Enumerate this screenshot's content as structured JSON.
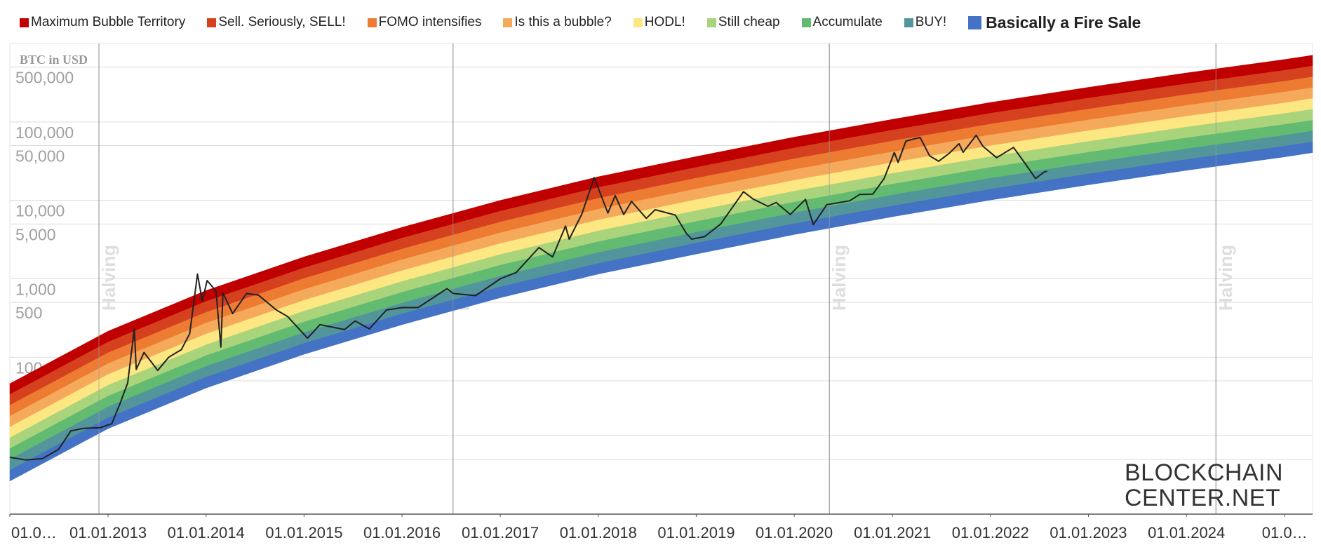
{
  "chart_data": {
    "type": "line",
    "y_label": "BTC in USD",
    "log_scale": true,
    "grid": true,
    "xlim": [
      "2012-01-01",
      "2025-04-15"
    ],
    "ylim": [
      1,
      1000000
    ],
    "yticks": [
      5,
      10,
      50,
      100,
      500,
      {
        "value": 1000,
        "label": "1,000"
      },
      {
        "value": 5000,
        "label": "5,000"
      },
      {
        "value": 10000,
        "label": "10,000"
      },
      {
        "value": 50000,
        "label": "50,000"
      },
      {
        "value": 100000,
        "label": "100,000"
      },
      {
        "value": 500000,
        "label": "500,000"
      }
    ],
    "xticks": [
      {
        "value": "2012-01-01",
        "label": "01.0…"
      },
      {
        "value": "2013-01-01",
        "label": "01.01.2013"
      },
      {
        "value": "2014-01-01",
        "label": "01.01.2014"
      },
      {
        "value": "2015-01-01",
        "label": "01.01.2015"
      },
      {
        "value": "2016-01-01",
        "label": "01.01.2016"
      },
      {
        "value": "2017-01-01",
        "label": "01.01.2017"
      },
      {
        "value": "2018-01-01",
        "label": "01.01.2018"
      },
      {
        "value": "2019-01-01",
        "label": "01.01.2019"
      },
      {
        "value": "2020-01-01",
        "label": "01.01.2020"
      },
      {
        "value": "2021-01-01",
        "label": "01.01.2021"
      },
      {
        "value": "2022-01-01",
        "label": "01.01.2022"
      },
      {
        "value": "2023-01-01",
        "label": "01.01.2023"
      },
      {
        "value": "2024-01-01",
        "label": "01.01.2024"
      },
      {
        "value": "2025-01-01",
        "label": "01.0…"
      }
    ],
    "x": [
      "2012-01-01",
      "2013-01-01",
      "2014-01-01",
      "2015-01-01",
      "2016-01-01",
      "2017-01-01",
      "2018-01-01",
      "2019-01-01",
      "2020-01-01",
      "2021-01-01",
      "2022-01-01",
      "2023-01-01",
      "2024-01-01",
      "2025-01-01",
      "2025-04-15"
    ],
    "series": [
      {
        "name": "Maximum Bubble Territory",
        "color": "#c00000",
        "values": [
          46,
          215,
          707,
          1900,
          4530,
          10000,
          20000,
          36200,
          64000,
          108000,
          177000,
          276000,
          421000,
          625000,
          708000
        ]
      },
      {
        "name": "Sell. Seriously, SELL!",
        "color": "#d5411f",
        "values": [
          33.5,
          156,
          515,
          1380,
          3300,
          7280,
          14600,
          26300,
          46600,
          78600,
          129000,
          201000,
          306000,
          455000,
          515000
        ]
      },
      {
        "name": "FOMO intensifies",
        "color": "#ee7b32",
        "values": [
          24.4,
          114,
          374,
          1010,
          2400,
          5300,
          10600,
          19200,
          33900,
          57200,
          93800,
          146000,
          223000,
          331000,
          375000
        ]
      },
      {
        "name": "Is this a bubble?",
        "color": "#f5aa5b",
        "values": [
          17.7,
          82.9,
          273,
          732,
          1750,
          3860,
          7710,
          14000,
          24700,
          41600,
          68200,
          106000,
          162000,
          241000,
          273000
        ]
      },
      {
        "name": "HODL!",
        "color": "#fde783",
        "values": [
          12.9,
          60.3,
          198,
          533,
          1270,
          2810,
          5610,
          10200,
          18000,
          30300,
          49700,
          77400,
          118000,
          175000,
          199000
        ]
      },
      {
        "name": "Still cheap",
        "color": "#aad47c",
        "values": [
          9.39,
          43.9,
          144,
          388,
          925,
          2040,
          4080,
          7390,
          13100,
          22100,
          36100,
          56400,
          86000,
          128000,
          145000
        ]
      },
      {
        "name": "Accumulate",
        "color": "#62bb71",
        "values": [
          6.84,
          32.0,
          105,
          282,
          673,
          1490,
          2970,
          5380,
          9510,
          16100,
          26300,
          41000,
          62600,
          92900,
          105000
        ]
      },
      {
        "name": "BUY!",
        "color": "#52969c",
        "values": [
          4.98,
          23.3,
          76.5,
          206,
          490,
          1080,
          2160,
          3920,
          6920,
          11700,
          19100,
          29900,
          45500,
          67600,
          76600
        ]
      },
      {
        "name": "Basically a Fire Sale",
        "color": "#4472c4",
        "values": [
          3.62,
          16.9,
          55.7,
          150,
          357,
          787,
          1570,
          2850,
          5040,
          8500,
          13900,
          21700,
          33200,
          49200,
          55700
        ]
      }
    ],
    "band_floor": [
      2.64,
      12.3,
      40.5,
      109,
      260,
      573,
      1150,
      2070,
      3670,
      6190,
      10100,
      15800,
      24100,
      35800,
      40600
    ],
    "price": {
      "color": "#222222",
      "x": [
        "2012-01-01",
        "2012-03-01",
        "2012-05-01",
        "2012-07-01",
        "2012-08-15",
        "2012-10-01",
        "2012-12-01",
        "2013-01-15",
        "2013-02-15",
        "2013-03-15",
        "2013-04-09",
        "2013-04-16",
        "2013-05-15",
        "2013-07-05",
        "2013-08-15",
        "2013-10-01",
        "2013-11-01",
        "2013-11-30",
        "2013-12-18",
        "2014-01-05",
        "2014-02-07",
        "2014-02-25",
        "2014-03-05",
        "2014-04-10",
        "2014-06-01",
        "2014-07-15",
        "2014-09-20",
        "2014-11-01",
        "2015-01-14",
        "2015-03-01",
        "2015-06-01",
        "2015-07-10",
        "2015-09-01",
        "2015-11-04",
        "2016-01-01",
        "2016-03-01",
        "2016-06-17",
        "2016-07-09",
        "2016-10-01",
        "2017-01-01",
        "2017-03-01",
        "2017-05-25",
        "2017-07-15",
        "2017-09-01",
        "2017-09-15",
        "2017-11-01",
        "2017-12-17",
        "2018-02-06",
        "2018-03-05",
        "2018-04-06",
        "2018-05-05",
        "2018-06-29",
        "2018-08-01",
        "2018-10-15",
        "2018-11-25",
        "2018-12-15",
        "2019-02-01",
        "2019-04-02",
        "2019-06-26",
        "2019-08-01",
        "2019-09-25",
        "2019-10-26",
        "2019-12-17",
        "2020-02-12",
        "2020-03-12",
        "2020-05-01",
        "2020-07-26",
        "2020-09-01",
        "2020-10-20",
        "2020-12-01",
        "2021-01-08",
        "2021-01-22",
        "2021-02-20",
        "2021-04-14",
        "2021-05-19",
        "2021-06-22",
        "2021-08-01",
        "2021-09-06",
        "2021-09-21",
        "2021-11-09",
        "2021-12-04",
        "2022-01-24",
        "2022-03-28",
        "2022-05-12",
        "2022-06-18",
        "2022-07-20",
        "2022-07-31"
      ],
      "values": [
        5.3,
        4.9,
        5.1,
        6.7,
        11.5,
        12.4,
        12.6,
        14.2,
        26,
        47,
        230,
        70,
        115,
        68,
        100,
        125,
        200,
        1150,
        520,
        950,
        700,
        135,
        660,
        360,
        650,
        620,
        400,
        330,
        175,
        260,
        225,
        290,
        230,
        400,
        430,
        430,
        750,
        650,
        610,
        1000,
        1200,
        2500,
        1900,
        4700,
        3200,
        6700,
        19500,
        6900,
        11500,
        6600,
        9700,
        5900,
        7600,
        6500,
        3800,
        3200,
        3450,
        5000,
        12900,
        10400,
        8400,
        9400,
        6600,
        10300,
        4900,
        8800,
        9900,
        11900,
        12000,
        19000,
        40800,
        30500,
        57000,
        63500,
        37000,
        31500,
        40000,
        52700,
        41000,
        67500,
        49000,
        35000,
        47300,
        29000,
        19000,
        23000,
        23500
      ]
    },
    "annotations": [
      {
        "x": "2012-11-28",
        "label": "Halving"
      },
      {
        "x": "2016-07-09",
        "label": "Halving"
      },
      {
        "x": "2020-05-11",
        "label": "Halving"
      },
      {
        "x": "2024-04-20",
        "label": "Halving"
      }
    ],
    "logo": [
      "BLOCKCHAIN",
      "CENTER.NET"
    ]
  }
}
